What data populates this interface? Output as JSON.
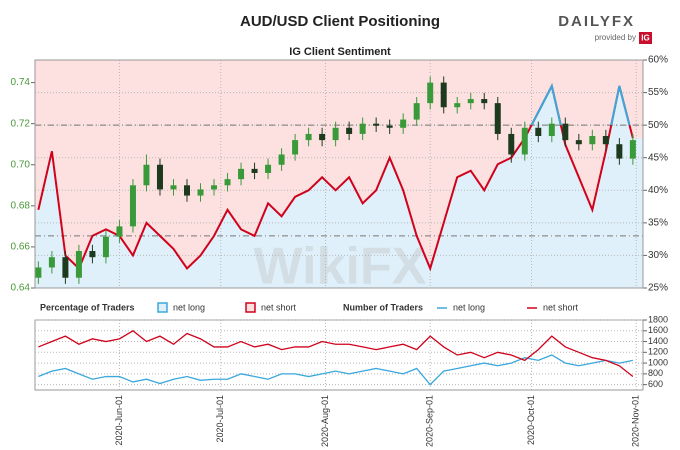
{
  "header": {
    "logo": "DAILYFX",
    "tagline": "provided by",
    "logo_mark": "IG"
  },
  "chart_data": {
    "type": "candlestick",
    "title": "AUD/USD Client Positioning",
    "subtitle": "IG Client Sentiment",
    "watermark": "WikiFX",
    "x": [
      "2020-05-08",
      "2020-05-12",
      "2020-05-16",
      "2020-05-20",
      "2020-05-24",
      "2020-05-28",
      "2020-06-01",
      "2020-06-05",
      "2020-06-09",
      "2020-06-13",
      "2020-06-17",
      "2020-06-21",
      "2020-06-25",
      "2020-06-29",
      "2020-07-03",
      "2020-07-07",
      "2020-07-11",
      "2020-07-15",
      "2020-07-19",
      "2020-07-23",
      "2020-07-27",
      "2020-07-31",
      "2020-08-04",
      "2020-08-08",
      "2020-08-12",
      "2020-08-16",
      "2020-08-20",
      "2020-08-24",
      "2020-08-28",
      "2020-09-01",
      "2020-09-05",
      "2020-09-09",
      "2020-09-13",
      "2020-09-17",
      "2020-09-21",
      "2020-09-25",
      "2020-09-29",
      "2020-10-03",
      "2020-10-07",
      "2020-10-11",
      "2020-10-15",
      "2020-10-19",
      "2020-10-23",
      "2020-10-27",
      "2020-10-31"
    ],
    "xlim": [
      "2020-05-07",
      "2020-11-03"
    ],
    "xticks": [
      {
        "value": "2020-06-01",
        "label": "2020-Jun-01"
      },
      {
        "value": "2020-07-01",
        "label": "2020-Jul-01"
      },
      {
        "value": "2020-08-01",
        "label": "2020-Aug-01"
      },
      {
        "value": "2020-09-01",
        "label": "2020-Sep-01"
      },
      {
        "value": "2020-10-01",
        "label": "2020-Oct-01"
      },
      {
        "value": "2020-11-01",
        "label": "2020-Nov-01"
      }
    ],
    "open": [
      0.645,
      0.65,
      0.655,
      0.645,
      0.658,
      0.655,
      0.665,
      0.67,
      0.69,
      0.7,
      0.688,
      0.69,
      0.685,
      0.688,
      0.69,
      0.693,
      0.698,
      0.696,
      0.7,
      0.705,
      0.712,
      0.715,
      0.712,
      0.718,
      0.715,
      0.72,
      0.719,
      0.718,
      0.722,
      0.73,
      0.74,
      0.728,
      0.73,
      0.732,
      0.73,
      0.715,
      0.705,
      0.718,
      0.714,
      0.72,
      0.712,
      0.71,
      0.714,
      0.71,
      0.703
    ],
    "high": [
      0.653,
      0.658,
      0.658,
      0.661,
      0.661,
      0.668,
      0.673,
      0.693,
      0.705,
      0.703,
      0.693,
      0.693,
      0.691,
      0.693,
      0.696,
      0.701,
      0.701,
      0.703,
      0.708,
      0.715,
      0.718,
      0.718,
      0.721,
      0.721,
      0.723,
      0.723,
      0.722,
      0.725,
      0.733,
      0.743,
      0.743,
      0.733,
      0.735,
      0.735,
      0.733,
      0.718,
      0.721,
      0.721,
      0.723,
      0.723,
      0.715,
      0.717,
      0.717,
      0.713,
      0.715
    ],
    "low": [
      0.642,
      0.647,
      0.642,
      0.642,
      0.652,
      0.652,
      0.662,
      0.667,
      0.687,
      0.685,
      0.685,
      0.682,
      0.682,
      0.685,
      0.687,
      0.69,
      0.693,
      0.693,
      0.697,
      0.702,
      0.709,
      0.709,
      0.709,
      0.712,
      0.712,
      0.716,
      0.715,
      0.715,
      0.719,
      0.727,
      0.725,
      0.725,
      0.727,
      0.727,
      0.712,
      0.701,
      0.702,
      0.711,
      0.711,
      0.709,
      0.707,
      0.707,
      0.707,
      0.7,
      0.7
    ],
    "close": [
      0.65,
      0.655,
      0.645,
      0.658,
      0.655,
      0.665,
      0.67,
      0.69,
      0.7,
      0.688,
      0.69,
      0.685,
      0.688,
      0.69,
      0.693,
      0.698,
      0.696,
      0.7,
      0.705,
      0.712,
      0.715,
      0.712,
      0.718,
      0.715,
      0.72,
      0.719,
      0.718,
      0.722,
      0.73,
      0.74,
      0.728,
      0.73,
      0.732,
      0.73,
      0.715,
      0.705,
      0.718,
      0.714,
      0.72,
      0.712,
      0.71,
      0.714,
      0.71,
      0.703,
      0.712
    ],
    "up_color": "#3a9a3a",
    "down_color": "#1e3a1e",
    "ylim": [
      0.64,
      0.751
    ],
    "yticks": [
      0.64,
      0.66,
      0.68,
      {
        "value": 0.7,
        "label": "0.70"
      },
      0.72,
      0.74
    ],
    "sentiment_values": [
      37,
      46,
      30,
      28,
      33,
      34,
      33,
      30,
      35,
      33,
      31,
      28,
      30,
      33,
      37,
      34,
      33,
      38,
      36,
      39,
      40,
      42,
      40,
      42,
      38,
      40,
      45,
      40,
      33,
      28,
      35,
      42,
      43,
      40,
      44,
      45,
      48,
      52,
      56,
      47,
      42,
      37,
      46,
      56,
      48
    ],
    "y2lim": [
      25,
      60
    ],
    "y2ticks": [
      {
        "value": 25,
        "label": "25%"
      },
      {
        "value": 30,
        "label": "30%"
      },
      {
        "value": 35,
        "label": "35%"
      },
      {
        "value": 40,
        "label": "40%"
      },
      {
        "value": 45,
        "label": "45%"
      },
      {
        "value": 50,
        "label": "50%"
      },
      {
        "value": 55,
        "label": "55%"
      },
      {
        "value": 60,
        "label": "60%"
      }
    ],
    "y2_reference_lines": [
      50,
      33
    ],
    "grid": true,
    "percentage_legend": {
      "title": "Percentage of Traders",
      "items": [
        {
          "name": "net long",
          "color": "#3aa8dc",
          "fill": "#dff0fb"
        },
        {
          "name": "net short",
          "color": "#d0021b",
          "fill": "#fde0e0"
        }
      ]
    },
    "number_legend_title": "Number of Traders",
    "lower_series": [
      {
        "name": "net long",
        "color": "#3aa8dc",
        "values": [
          750,
          850,
          900,
          800,
          700,
          750,
          750,
          650,
          700,
          620,
          700,
          750,
          680,
          700,
          700,
          800,
          750,
          700,
          800,
          800,
          750,
          800,
          850,
          800,
          850,
          900,
          850,
          800,
          900,
          600,
          850,
          900,
          950,
          1000,
          950,
          1000,
          1100,
          1050,
          1150,
          1000,
          950,
          1000,
          1050,
          1000,
          1050
        ]
      },
      {
        "name": "net short",
        "color": "#d0021b",
        "values": [
          1300,
          1400,
          1500,
          1350,
          1450,
          1400,
          1450,
          1600,
          1400,
          1500,
          1350,
          1550,
          1450,
          1300,
          1300,
          1400,
          1300,
          1350,
          1250,
          1300,
          1300,
          1400,
          1350,
          1350,
          1300,
          1250,
          1300,
          1350,
          1250,
          1500,
          1300,
          1150,
          1200,
          1100,
          1200,
          1150,
          1050,
          1250,
          1500,
          1300,
          1200,
          1100,
          1050,
          950,
          750
        ]
      }
    ],
    "lower_ylim": [
      500,
      1800
    ],
    "lower_yticks": [
      600,
      800,
      1000,
      1200,
      1400,
      1600,
      1800
    ]
  }
}
